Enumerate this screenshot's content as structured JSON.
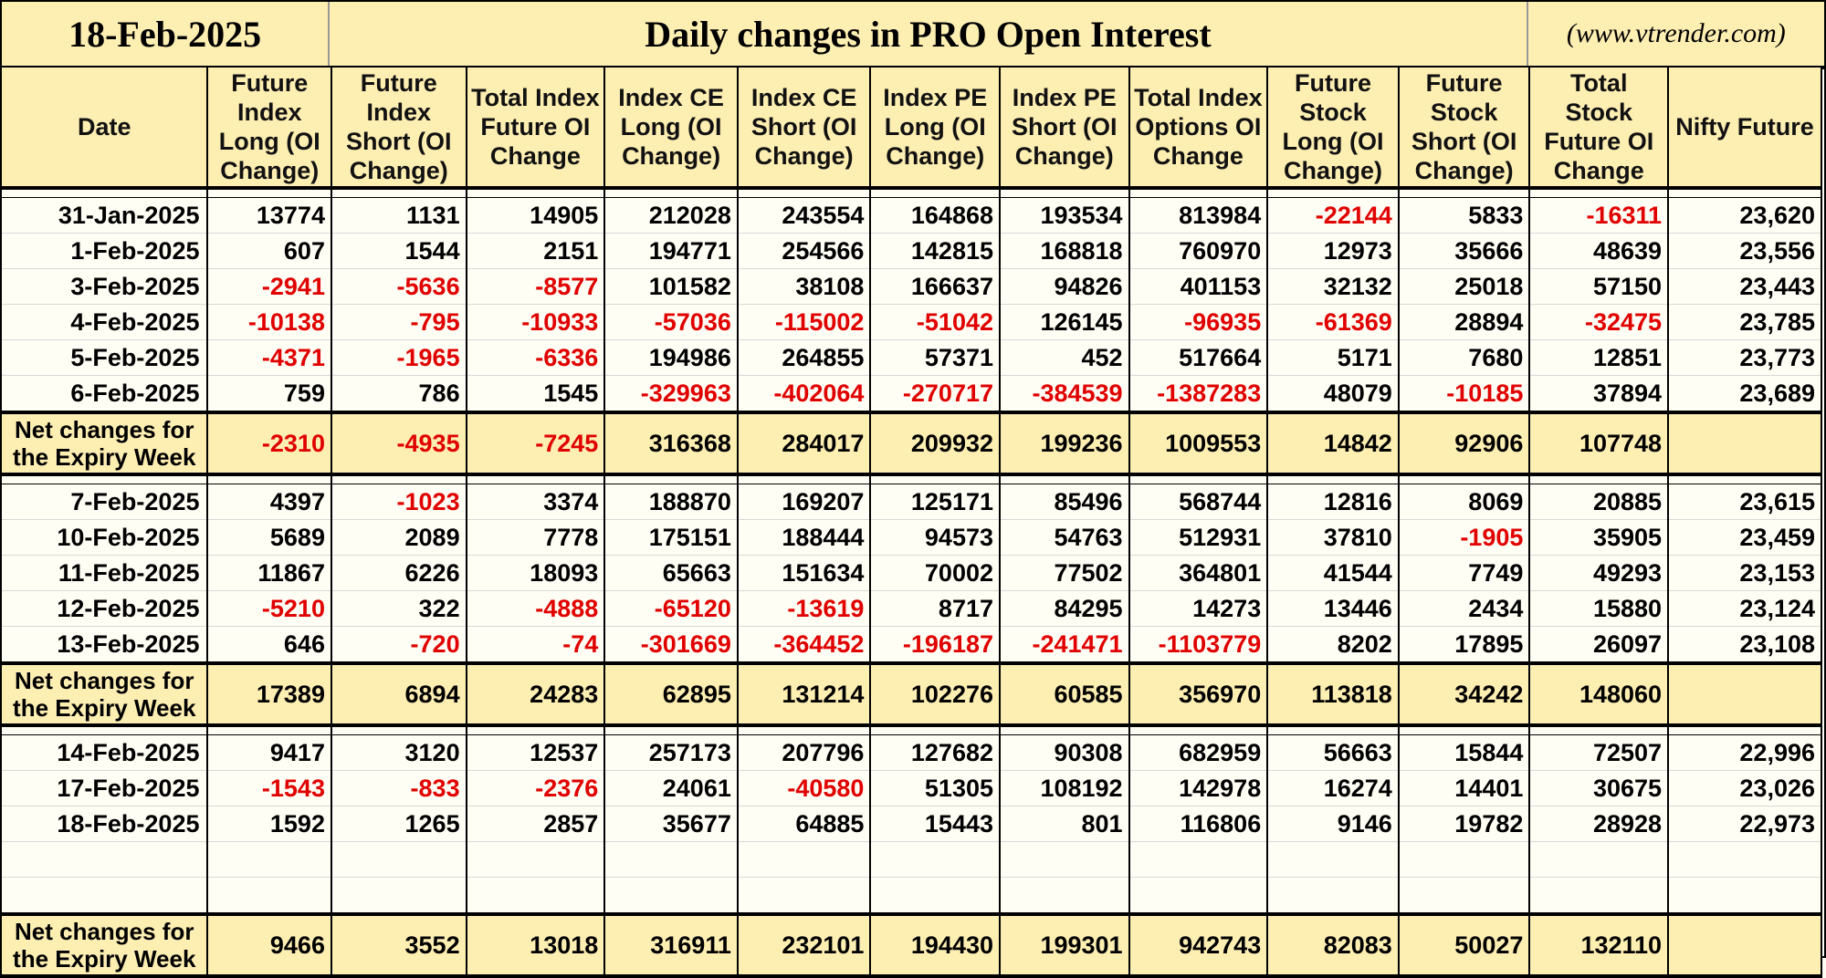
{
  "header": {
    "date": "18-Feb-2025",
    "title": "Daily changes in PRO Open Interest",
    "site": "(www.vtrender.com)"
  },
  "columns": [
    "Date",
    "Future Index Long (OI Change)",
    "Future Index Short (OI Change)",
    "Total Index Future OI Change",
    "Index CE Long (OI Change)",
    "Index CE Short (OI Change)",
    "Index PE Long (OI Change)",
    "Index PE Short (OI Change)",
    "Total Index Options OI Change",
    "Future Stock Long (OI Change)",
    "Future Stock Short (OI Change)",
    "Total Stock Future OI Change",
    "Nifty Future"
  ],
  "net_label": "Net changes for the Expiry Week",
  "groups": [
    {
      "rows": [
        [
          "31-Jan-2025",
          "13774",
          "1131",
          "14905",
          "212028",
          "243554",
          "164868",
          "193534",
          "813984",
          "-22144",
          "5833",
          "-16311",
          "23,620"
        ],
        [
          "1-Feb-2025",
          "607",
          "1544",
          "2151",
          "194771",
          "254566",
          "142815",
          "168818",
          "760970",
          "12973",
          "35666",
          "48639",
          "23,556"
        ],
        [
          "3-Feb-2025",
          "-2941",
          "-5636",
          "-8577",
          "101582",
          "38108",
          "166637",
          "94826",
          "401153",
          "32132",
          "25018",
          "57150",
          "23,443"
        ],
        [
          "4-Feb-2025",
          "-10138",
          "-795",
          "-10933",
          "-57036",
          "-115002",
          "-51042",
          "126145",
          "-96935",
          "-61369",
          "28894",
          "-32475",
          "23,785"
        ],
        [
          "5-Feb-2025",
          "-4371",
          "-1965",
          "-6336",
          "194986",
          "264855",
          "57371",
          "452",
          "517664",
          "5171",
          "7680",
          "12851",
          "23,773"
        ],
        [
          "6-Feb-2025",
          "759",
          "786",
          "1545",
          "-329963",
          "-402064",
          "-270717",
          "-384539",
          "-1387283",
          "48079",
          "-10185",
          "37894",
          "23,689"
        ]
      ],
      "net": [
        "-2310",
        "-4935",
        "-7245",
        "316368",
        "284017",
        "209932",
        "199236",
        "1009553",
        "14842",
        "92906",
        "107748",
        ""
      ]
    },
    {
      "rows": [
        [
          "7-Feb-2025",
          "4397",
          "-1023",
          "3374",
          "188870",
          "169207",
          "125171",
          "85496",
          "568744",
          "12816",
          "8069",
          "20885",
          "23,615"
        ],
        [
          "10-Feb-2025",
          "5689",
          "2089",
          "7778",
          "175151",
          "188444",
          "94573",
          "54763",
          "512931",
          "37810",
          "-1905",
          "35905",
          "23,459"
        ],
        [
          "11-Feb-2025",
          "11867",
          "6226",
          "18093",
          "65663",
          "151634",
          "70002",
          "77502",
          "364801",
          "41544",
          "7749",
          "49293",
          "23,153"
        ],
        [
          "12-Feb-2025",
          "-5210",
          "322",
          "-4888",
          "-65120",
          "-13619",
          "8717",
          "84295",
          "14273",
          "13446",
          "2434",
          "15880",
          "23,124"
        ],
        [
          "13-Feb-2025",
          "646",
          "-720",
          "-74",
          "-301669",
          "-364452",
          "-196187",
          "-241471",
          "-1103779",
          "8202",
          "17895",
          "26097",
          "23,108"
        ]
      ],
      "net": [
        "17389",
        "6894",
        "24283",
        "62895",
        "131214",
        "102276",
        "60585",
        "356970",
        "113818",
        "34242",
        "148060",
        ""
      ]
    },
    {
      "rows": [
        [
          "14-Feb-2025",
          "9417",
          "3120",
          "12537",
          "257173",
          "207796",
          "127682",
          "90308",
          "682959",
          "56663",
          "15844",
          "72507",
          "22,996"
        ],
        [
          "17-Feb-2025",
          "-1543",
          "-833",
          "-2376",
          "24061",
          "-40580",
          "51305",
          "108192",
          "142978",
          "16274",
          "14401",
          "30675",
          "23,026"
        ],
        [
          "18-Feb-2025",
          "1592",
          "1265",
          "2857",
          "35677",
          "64885",
          "15443",
          "801",
          "116806",
          "9146",
          "19782",
          "28928",
          "22,973"
        ],
        [
          "",
          "",
          "",
          "",
          "",
          "",
          "",
          "",
          "",
          "",
          "",
          "",
          ""
        ],
        [
          "",
          "",
          "",
          "",
          "",
          "",
          "",
          "",
          "",
          "",
          "",
          "",
          ""
        ]
      ],
      "net": [
        "9466",
        "3552",
        "13018",
        "316911",
        "232101",
        "194430",
        "199301",
        "942743",
        "82083",
        "50027",
        "132110",
        ""
      ]
    }
  ],
  "colors": {
    "header_bg": "#fdeeb2",
    "negative": "#e00000"
  }
}
